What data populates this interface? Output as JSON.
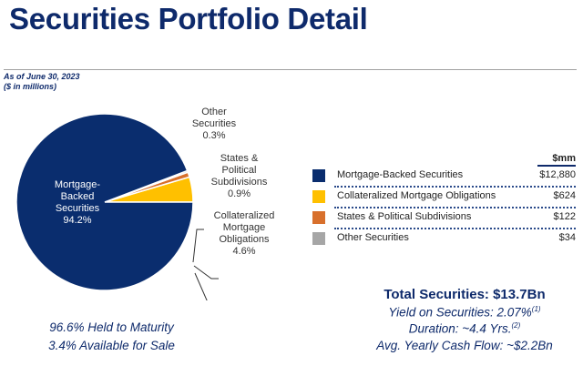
{
  "header": {
    "title": "Securities Portfolio Detail",
    "as_of": "As of June 30, 2023",
    "units": "($ in millions)"
  },
  "chart_data": {
    "type": "pie",
    "slices": [
      {
        "name": "Collateralized Mortgage Obligations",
        "label_lines": [
          "Collateralized",
          "Mortgage",
          "Obligations"
        ],
        "percent": 4.6,
        "percent_label": "4.6%",
        "value": 624,
        "value_label": "$624",
        "color": "#ffc000"
      },
      {
        "name": "States & Political Subdivisions",
        "label_lines": [
          "States &",
          "Political",
          "Subdivisions"
        ],
        "percent": 0.9,
        "percent_label": "0.9%",
        "value": 122,
        "value_label": "$122",
        "color": "#d8702c"
      },
      {
        "name": "Other Securities",
        "label_lines": [
          "Other",
          "Securities"
        ],
        "percent": 0.3,
        "percent_label": "0.3%",
        "value": 34,
        "value_label": "$34",
        "color": "#a6a6a6"
      },
      {
        "name": "Mortgage-Backed Securities",
        "label_lines": [
          "Mortgage-",
          "Backed",
          "Securities"
        ],
        "percent": 94.2,
        "percent_label": "94.2%",
        "value": 12880,
        "value_label": "$12,880",
        "color": "#0a2d6e"
      }
    ],
    "legend_header": "$mm"
  },
  "maturity": {
    "htm": "96.6% Held to Maturity",
    "afs": "3.4% Available for Sale"
  },
  "stats": {
    "total": "Total Securities: $13.7Bn",
    "yield": "Yield on Securities: 2.07%",
    "yield_note": "(1)",
    "duration": "Duration: ~4.4 Yrs.",
    "duration_note": "(2)",
    "cash_flow": "Avg. Yearly Cash Flow: ~$2.2Bn"
  }
}
